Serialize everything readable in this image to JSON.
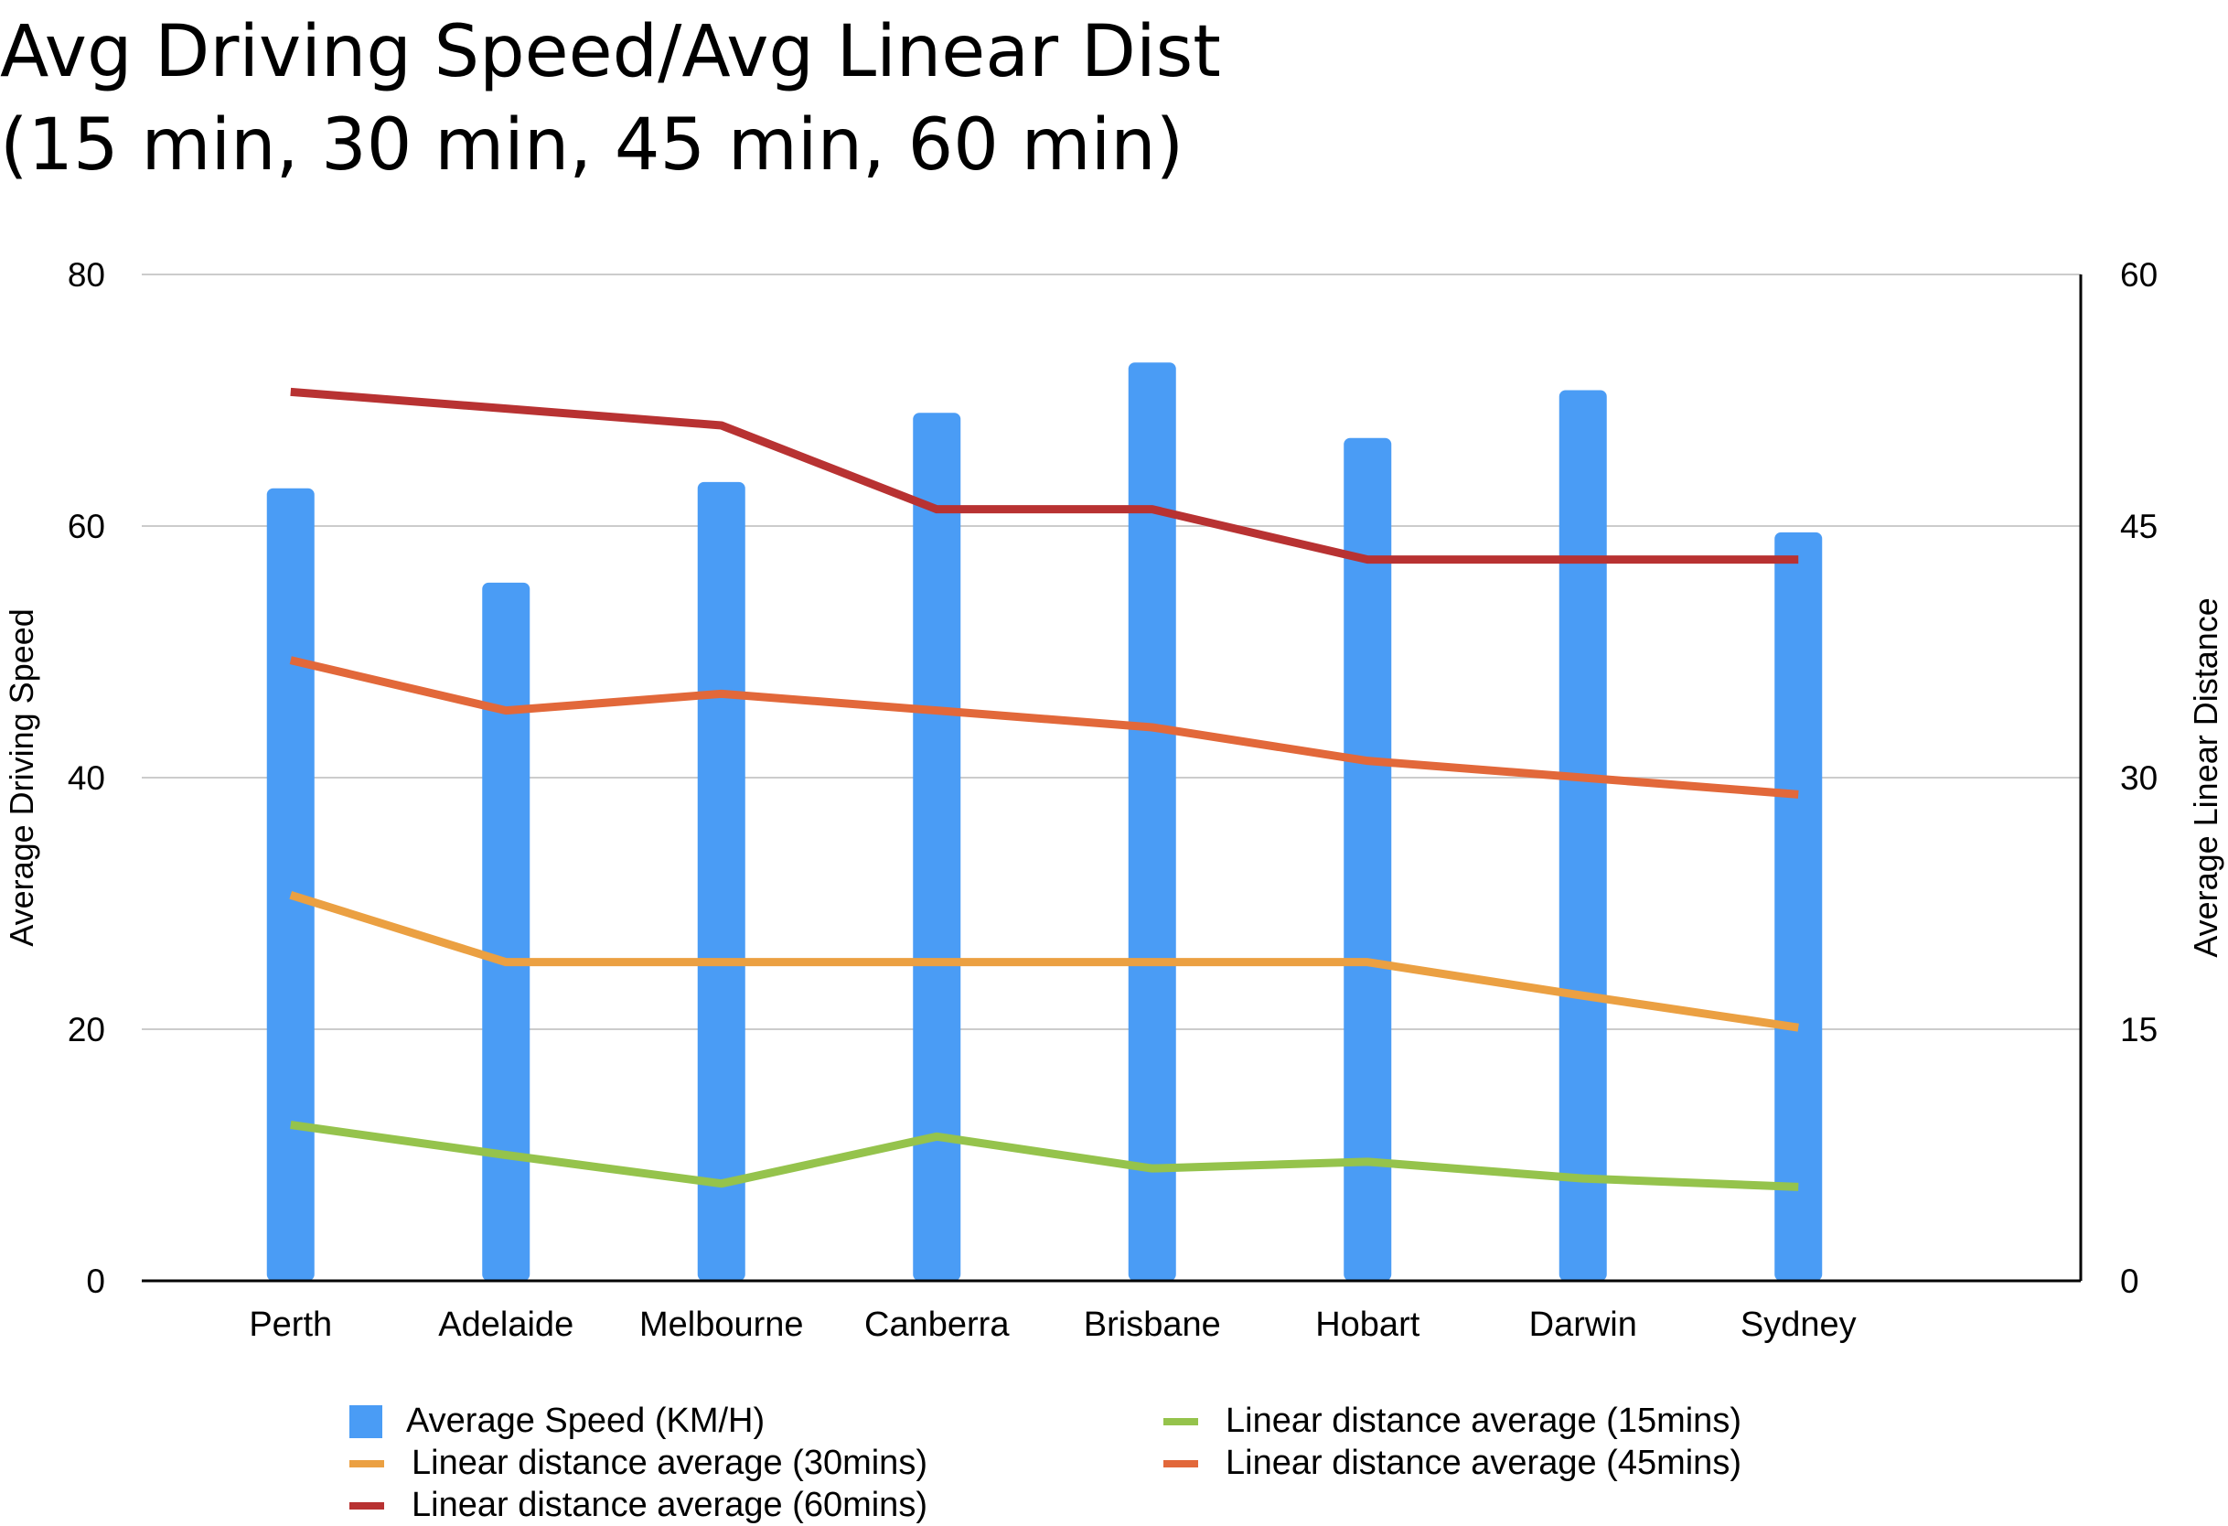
{
  "title": {
    "line1": "Avg Driving Speed/Avg Linear Dist",
    "line2": "(15 min, 30 min, 45 min, 60 min)"
  },
  "colors": {
    "speed": "#4a9cf5",
    "d15": "#95c34c",
    "d30": "#eba042",
    "d45": "#e2683a",
    "d60": "#b83232",
    "grid": "#cccccc"
  },
  "chart_data": {
    "type": "bar",
    "categories": [
      "Perth",
      "Adelaide",
      "Melbourne",
      "Canberra",
      "Brisbane",
      "Hobart",
      "Darwin",
      "Sydney"
    ],
    "ylabel": "Average Driving Speed",
    "ylabel_right": "Average Linear Distance",
    "ylim": [
      0,
      80
    ],
    "ylim_right": [
      0,
      60
    ],
    "yticks": [
      0,
      20,
      40,
      60,
      80
    ],
    "yticks_right": [
      0,
      15,
      30,
      45,
      60
    ],
    "grid": true,
    "legend_position": "bottom",
    "series": [
      {
        "name": "Average Speed (KM/H)",
        "type": "bar",
        "axis": "left",
        "color": "#4a9cf5",
        "values": [
          63,
          55.5,
          63.5,
          69,
          73,
          67,
          70.8,
          59.5
        ]
      },
      {
        "name": "Linear distance average (15mins)",
        "type": "line",
        "axis": "right",
        "color": "#95c34c",
        "values": [
          9.3,
          7.5,
          5.8,
          8.6,
          6.7,
          7.1,
          6.1,
          5.6
        ]
      },
      {
        "name": "Linear distance average (30mins)",
        "type": "line",
        "axis": "right",
        "color": "#eba042",
        "values": [
          23,
          19,
          19,
          19,
          19,
          19,
          17,
          15.1
        ]
      },
      {
        "name": "Linear distance average (45mins)",
        "type": "line",
        "axis": "right",
        "color": "#e2683a",
        "values": [
          37,
          34,
          35,
          34,
          33,
          31,
          30,
          29
        ]
      },
      {
        "name": "Linear distance average (60mins)",
        "type": "line",
        "axis": "right",
        "color": "#b83232",
        "values": [
          53,
          52,
          51,
          46,
          46,
          43,
          43,
          43
        ]
      }
    ]
  }
}
